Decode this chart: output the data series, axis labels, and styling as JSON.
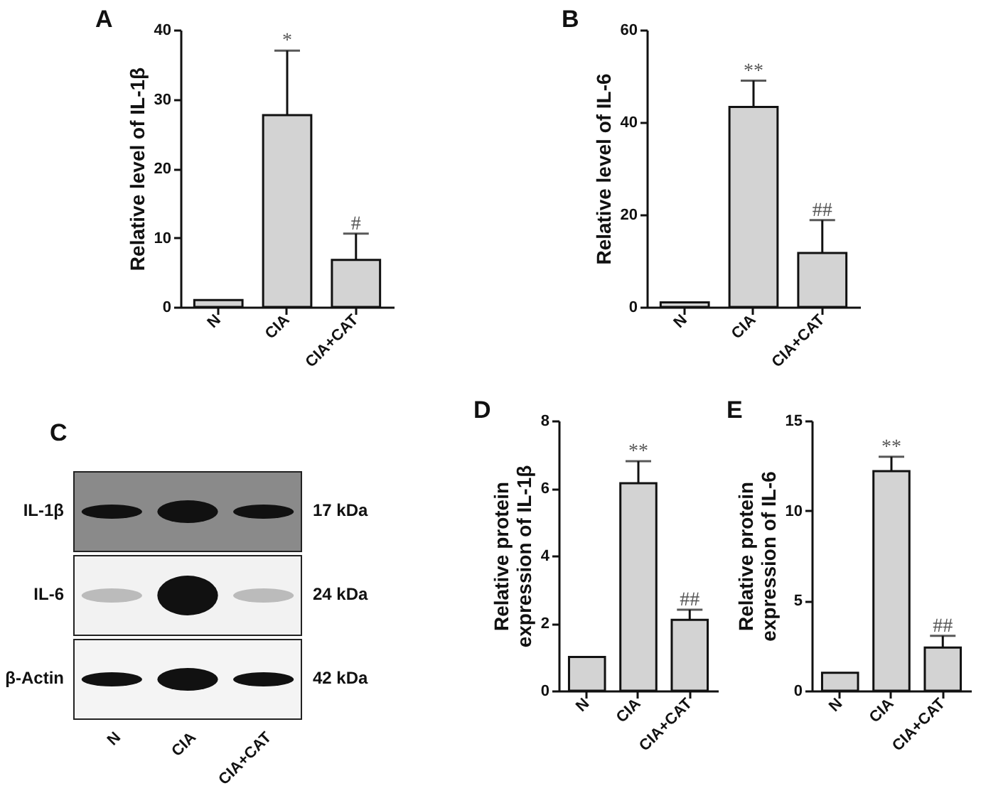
{
  "chart_data": [
    {
      "type": "bar",
      "title": "A",
      "ylabel": "Relative level of IL-1β",
      "categories": [
        "N",
        "CIA",
        "CIA+CAT"
      ],
      "values": [
        1,
        27.7,
        6.8
      ],
      "errors": [
        null,
        [
          27.7,
          37
        ],
        [
          6.8,
          10.6
        ]
      ],
      "color": "#d3d3d3",
      "ylim": [
        0,
        40
      ],
      "yticks": [
        0,
        10,
        20,
        30,
        40
      ],
      "annotations": [
        {
          "text": "*",
          "x": "CIA",
          "y": 37
        },
        {
          "text": "#",
          "x": "CIA+CAT",
          "y": 10.6
        }
      ]
    },
    {
      "type": "bar",
      "title": "B",
      "ylabel": "Relative level of IL-6",
      "categories": [
        "N",
        "CIA",
        "CIA+CAT"
      ],
      "values": [
        1,
        43.3,
        11.7
      ],
      "errors": [
        null,
        [
          43.3,
          49
        ],
        [
          11.7,
          18.8
        ]
      ],
      "color": "#d3d3d3",
      "ylim": [
        0,
        60
      ],
      "yticks": [
        0,
        20,
        40,
        60
      ],
      "annotations": [
        {
          "text": "**",
          "x": "CIA",
          "y": 49
        },
        {
          "text": "##",
          "x": "CIA+CAT",
          "y": 18.8
        }
      ]
    },
    {
      "type": "other",
      "title": "C",
      "categories": [
        "N",
        "CIA",
        "CIA+CAT"
      ],
      "y_categories": [
        "IL-1β",
        "IL-6",
        "β-Actin"
      ],
      "y2_categories": [
        "17 kDa",
        "24 kDa",
        "42 kDa"
      ]
    },
    {
      "type": "bar",
      "title": "D",
      "ylabel": "Relative protein expression of IL-1β",
      "categories": [
        "N",
        "CIA",
        "CIA+CAT"
      ],
      "values": [
        1,
        6.15,
        2.1
      ],
      "errors": [
        null,
        [
          6.15,
          6.8
        ],
        [
          2.1,
          2.4
        ]
      ],
      "color": "#d3d3d3",
      "ylim": [
        0,
        8
      ],
      "yticks": [
        0,
        2,
        4,
        6,
        8
      ],
      "annotations": [
        {
          "text": "**",
          "x": "CIA",
          "y": 6.8
        },
        {
          "text": "##",
          "x": "CIA+CAT",
          "y": 2.4
        }
      ]
    },
    {
      "type": "bar",
      "title": "E",
      "ylabel": "Relative protein expression of IL-6",
      "categories": [
        "N",
        "CIA",
        "CIA+CAT"
      ],
      "values": [
        1,
        12.2,
        2.4
      ],
      "errors": [
        null,
        [
          12.2,
          13.0
        ],
        [
          2.4,
          3.05
        ]
      ],
      "color": "#d3d3d3",
      "ylim": [
        0,
        15
      ],
      "yticks": [
        0,
        5,
        10,
        15
      ],
      "annotations": [
        {
          "text": "**",
          "x": "CIA",
          "y": 13.0
        },
        {
          "text": "##",
          "x": "CIA+CAT",
          "y": 3.05
        }
      ]
    }
  ]
}
